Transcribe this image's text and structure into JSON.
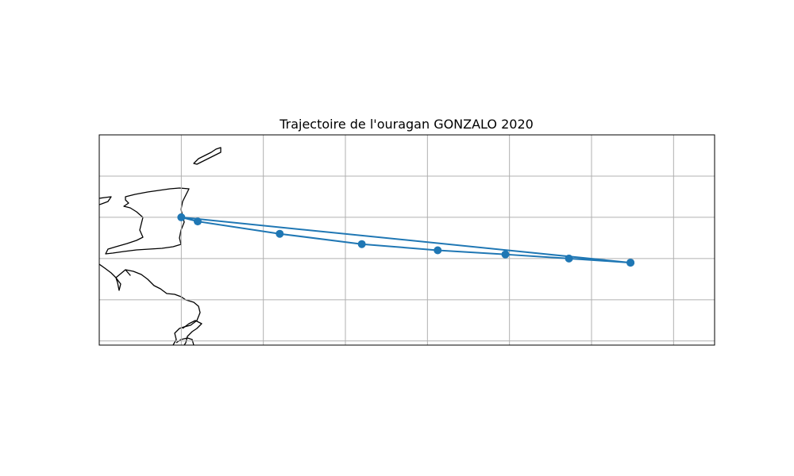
{
  "title": "Trajectoire de l'ouragan GONZALO 2020",
  "map": {
    "extent": {
      "lon_min": -62,
      "lon_max": -47,
      "lat_min": 8.9,
      "lat_max": 14.0
    },
    "gridlines": {
      "lon": [
        -60,
        -58,
        -56,
        -54,
        -52,
        -50,
        -48
      ],
      "lat": [
        9,
        10,
        11,
        12,
        13
      ]
    },
    "grid_color": "#b0b0b0",
    "coast_color": "#000000"
  },
  "track": {
    "color": "#1f77b4",
    "points": [
      {
        "lon": -49.05,
        "lat": 10.9
      },
      {
        "lon": -50.55,
        "lat": 11.0
      },
      {
        "lon": -52.1,
        "lat": 11.1
      },
      {
        "lon": -53.75,
        "lat": 11.2
      },
      {
        "lon": -55.6,
        "lat": 11.35
      },
      {
        "lon": -57.6,
        "lat": 11.6
      },
      {
        "lon": -59.6,
        "lat": 11.9
      },
      {
        "lon": -60.0,
        "lat": 12.0
      },
      {
        "lon": -49.05,
        "lat": 10.9
      }
    ]
  }
}
